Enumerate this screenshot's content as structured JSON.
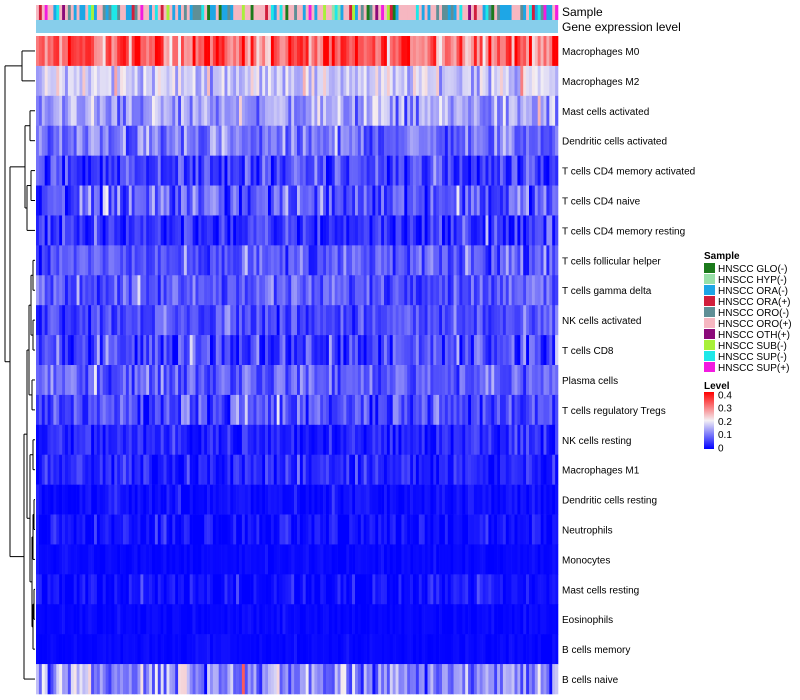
{
  "chart_data": {
    "type": "heatmap",
    "title": "",
    "annotation_labels": {
      "sample": "Sample",
      "gene_level": "Gene expression level"
    },
    "rows": [
      {
        "name": "Macrophages M0",
        "mean": 0.32,
        "spread": 0.1
      },
      {
        "name": "Macrophages M2",
        "mean": 0.17,
        "spread": 0.06
      },
      {
        "name": "Mast cells activated",
        "mean": 0.13,
        "spread": 0.07
      },
      {
        "name": "Dendritic cells activated",
        "mean": 0.09,
        "spread": 0.06
      },
      {
        "name": "T cells CD4 memory activated",
        "mean": 0.05,
        "spread": 0.06
      },
      {
        "name": "T cells CD4 naive",
        "mean": 0.07,
        "spread": 0.07
      },
      {
        "name": "T cells CD4 memory resting",
        "mean": 0.04,
        "spread": 0.06
      },
      {
        "name": "T cells follicular helper",
        "mean": 0.07,
        "spread": 0.05
      },
      {
        "name": "T cells gamma delta",
        "mean": 0.07,
        "spread": 0.05
      },
      {
        "name": "NK cells activated",
        "mean": 0.06,
        "spread": 0.05
      },
      {
        "name": "T cells CD8",
        "mean": 0.05,
        "spread": 0.07
      },
      {
        "name": "Plasma cells",
        "mean": 0.08,
        "spread": 0.05
      },
      {
        "name": "T cells regulatory  Tregs",
        "mean": 0.06,
        "spread": 0.06
      },
      {
        "name": "NK cells resting",
        "mean": 0.03,
        "spread": 0.04
      },
      {
        "name": "Macrophages M1",
        "mean": 0.03,
        "spread": 0.04
      },
      {
        "name": "Dendritic cells resting",
        "mean": 0.01,
        "spread": 0.02
      },
      {
        "name": "Neutrophils",
        "mean": 0.01,
        "spread": 0.03
      },
      {
        "name": "Monocytes",
        "mean": 0.005,
        "spread": 0.01
      },
      {
        "name": "Mast cells resting",
        "mean": 0.01,
        "spread": 0.03
      },
      {
        "name": "Eosinophils",
        "mean": 0.005,
        "spread": 0.01
      },
      {
        "name": "B cells memory",
        "mean": 0.005,
        "spread": 0.01
      },
      {
        "name": "B cells naive",
        "mean": 0.12,
        "spread": 0.09
      }
    ],
    "n_samples": 180,
    "legend": {
      "sample_title": "Sample",
      "sample_groups": [
        {
          "label": "HNSCC GLO(-)",
          "color": "#1b7a1b"
        },
        {
          "label": "HNSCC HYP(-)",
          "color": "#98e0a8"
        },
        {
          "label": "HNSCC ORA(-)",
          "color": "#1ea6e6"
        },
        {
          "label": "HNSCC ORA(+)",
          "color": "#d11f3c"
        },
        {
          "label": "HNSCC ORO(-)",
          "color": "#5f8f96"
        },
        {
          "label": "HNSCC ORO(+)",
          "color": "#f6b7c1"
        },
        {
          "label": "HNSCC OTH(+)",
          "color": "#8b0a7a"
        },
        {
          "label": "HNSCC SUB(-)",
          "color": "#a8f03a"
        },
        {
          "label": "HNSCC SUP(-)",
          "color": "#1ee8e8"
        },
        {
          "label": "HNSCC SUP(+)",
          "color": "#f21be0"
        }
      ],
      "level_title": "Level",
      "level_ticks": [
        "0.4",
        "0.3",
        "0.2",
        "0.1",
        "0"
      ],
      "level_range": [
        0,
        0.4
      ]
    },
    "colors": {
      "low": "#0000ff",
      "mid": "#f4f0f4",
      "high": "#ff0000",
      "gene_level_bar": "#87ceeb"
    }
  }
}
